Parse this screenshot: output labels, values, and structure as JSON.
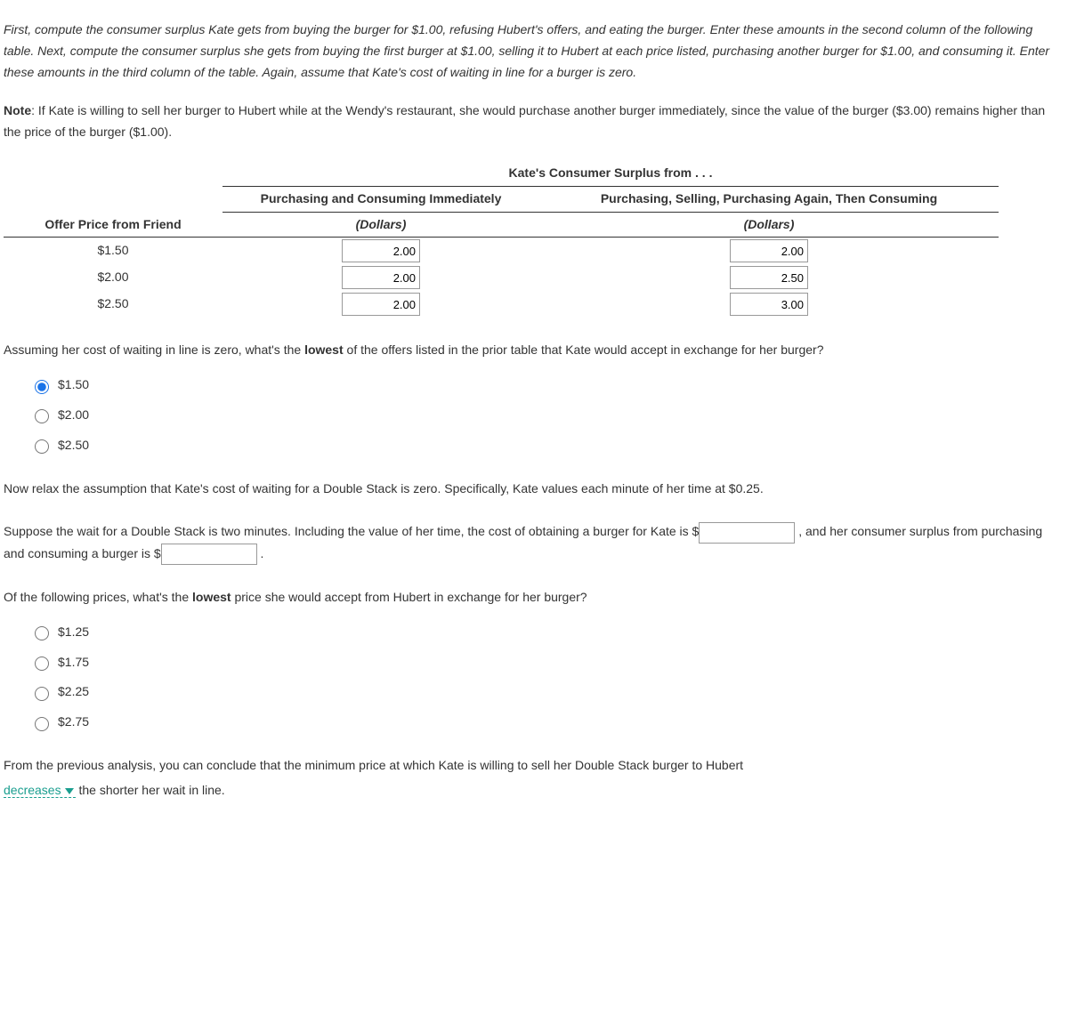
{
  "intro": "First, compute the consumer surplus Kate gets from buying the burger for $1.00, refusing Hubert's offers, and eating the burger. Enter these amounts in the second column of the following table. Next, compute the consumer surplus she gets from buying the first burger at $1.00, selling it to Hubert at each price listed, purchasing another burger for $1.00, and consuming it. Enter these amounts in the third column of the table. Again, assume that Kate's cost of waiting in line for a burger is zero.",
  "note_label": "Note",
  "note_text": ": If Kate is willing to sell her burger to Hubert while at the Wendy's restaurant, she would purchase another burger immediately, since the value of the burger ($3.00) remains higher than the price of the burger ($1.00).",
  "table": {
    "super_header": "Kate's Consumer Surplus from . . .",
    "col_offer": "Offer Price from Friend",
    "col_a": "Purchasing and Consuming Immediately",
    "col_b": "Purchasing, Selling, Purchasing Again, Then Consuming",
    "unit": "(Dollars)",
    "rows": [
      {
        "offer": "$1.50",
        "a": "2.00",
        "b": "2.00"
      },
      {
        "offer": "$2.00",
        "a": "2.00",
        "b": "2.50"
      },
      {
        "offer": "$2.50",
        "a": "2.00",
        "b": "3.00"
      }
    ]
  },
  "q1": {
    "prompt_a": "Assuming her cost of waiting in line is zero, what's the ",
    "prompt_bold": "lowest",
    "prompt_b": " of the offers listed in the prior table that Kate would accept in exchange for her burger?",
    "options": [
      "$1.50",
      "$2.00",
      "$2.50"
    ],
    "selected": 0
  },
  "relax": "Now relax the assumption that Kate's cost of waiting for a Double Stack is zero. Specifically, Kate values each minute of her time at $0.25.",
  "fill": {
    "part1": "Suppose the wait for a Double Stack is two minutes. Including the value of her time, the cost of obtaining a burger for Kate is ",
    "prefix": "$",
    "mid": " , and her consumer surplus from purchasing and consuming a burger is ",
    "suffix": " .",
    "val1": "",
    "val2": ""
  },
  "q2": {
    "prompt_a": "Of the following prices, what's the ",
    "prompt_bold": "lowest",
    "prompt_b": " price she would accept from Hubert in exchange for her burger?",
    "options": [
      "$1.25",
      "$1.75",
      "$2.25",
      "$2.75"
    ]
  },
  "conclusion": {
    "pre": "From the previous analysis, you can conclude that the minimum price at which Kate is willing to sell her Double Stack burger to Hubert ",
    "dropdown": "decreases",
    "post": " the shorter her wait in line."
  }
}
